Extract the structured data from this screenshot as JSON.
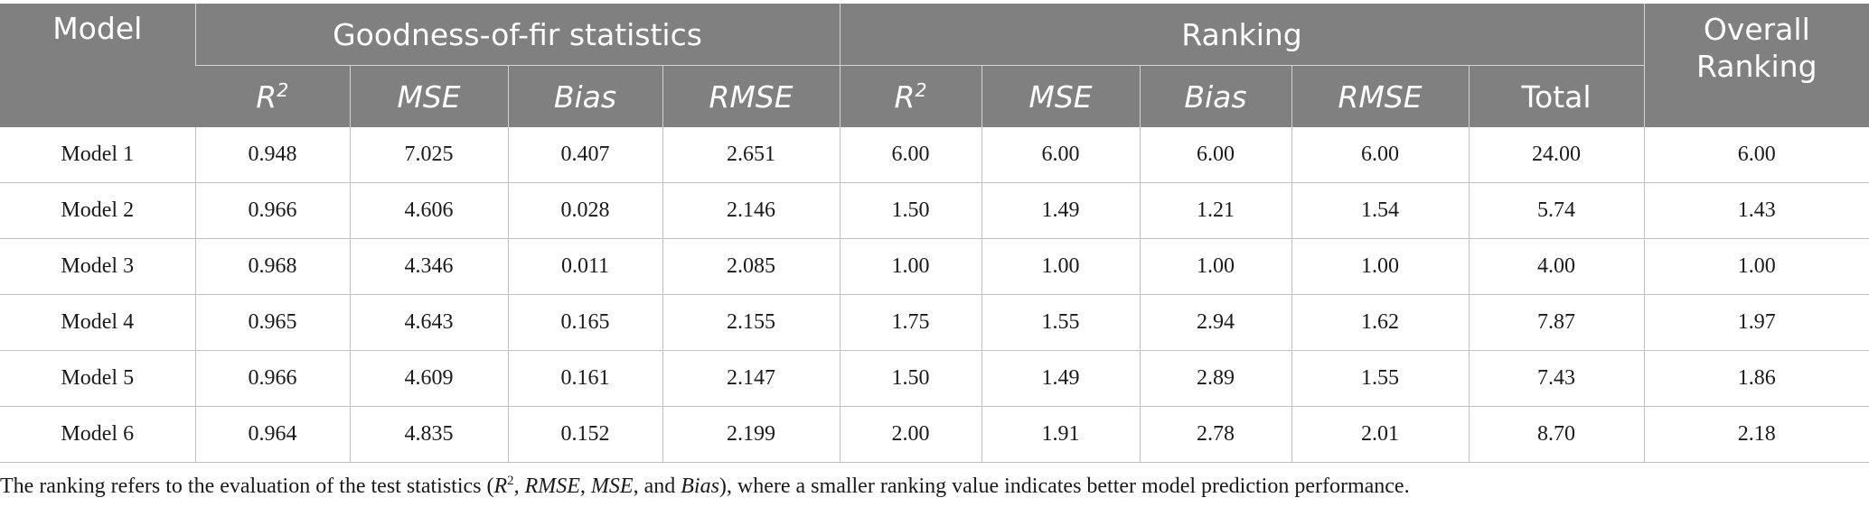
{
  "header": {
    "model": "Model",
    "goodness_group": "Goodness-of-fir statistics",
    "ranking_group": "Ranking",
    "overall_line1": "Overall",
    "overall_line2": "Ranking",
    "r2_base": "R",
    "r2_sup": "2",
    "mse": "MSE",
    "bias": "Bias",
    "rmse": "RMSE",
    "total": "Total"
  },
  "rows": [
    {
      "model": "Model 1",
      "r2": "0.948",
      "mse": "7.025",
      "bias": "0.407",
      "rmse": "2.651",
      "rank_r2": "6.00",
      "rank_mse": "6.00",
      "rank_bias": "6.00",
      "rank_rmse": "6.00",
      "total": "24.00",
      "overall": "6.00"
    },
    {
      "model": "Model 2",
      "r2": "0.966",
      "mse": "4.606",
      "bias": "0.028",
      "rmse": "2.146",
      "rank_r2": "1.50",
      "rank_mse": "1.49",
      "rank_bias": "1.21",
      "rank_rmse": "1.54",
      "total": "5.74",
      "overall": "1.43"
    },
    {
      "model": "Model 3",
      "r2": "0.968",
      "mse": "4.346",
      "bias": "0.011",
      "rmse": "2.085",
      "rank_r2": "1.00",
      "rank_mse": "1.00",
      "rank_bias": "1.00",
      "rank_rmse": "1.00",
      "total": "4.00",
      "overall": "1.00"
    },
    {
      "model": "Model 4",
      "r2": "0.965",
      "mse": "4.643",
      "bias": "0.165",
      "rmse": "2.155",
      "rank_r2": "1.75",
      "rank_mse": "1.55",
      "rank_bias": "2.94",
      "rank_rmse": "1.62",
      "total": "7.87",
      "overall": "1.97"
    },
    {
      "model": "Model 5",
      "r2": "0.966",
      "mse": "4.609",
      "bias": "0.161",
      "rmse": "2.147",
      "rank_r2": "1.50",
      "rank_mse": "1.49",
      "rank_bias": "2.89",
      "rank_rmse": "1.55",
      "total": "7.43",
      "overall": "1.86"
    },
    {
      "model": "Model 6",
      "r2": "0.964",
      "mse": "4.835",
      "bias": "0.152",
      "rmse": "2.199",
      "rank_r2": "2.00",
      "rank_mse": "1.91",
      "rank_bias": "2.78",
      "rank_rmse": "2.01",
      "total": "8.70",
      "overall": "2.18"
    }
  ],
  "footnote": {
    "part1": "The ranking refers to the evaluation of the test statistics (",
    "r2_base": "R",
    "r2_sup": "2",
    "sep1": ", ",
    "rmse": "RMSE",
    "sep2": ", ",
    "mse": "MSE",
    "sep3": ", and ",
    "bias": "Bias",
    "part2": "), where a smaller ranking value indicates better model prediction performance."
  },
  "colors": {
    "header_bg": "#808080",
    "header_text": "#ffffff",
    "grid": "#c0c0c0"
  }
}
